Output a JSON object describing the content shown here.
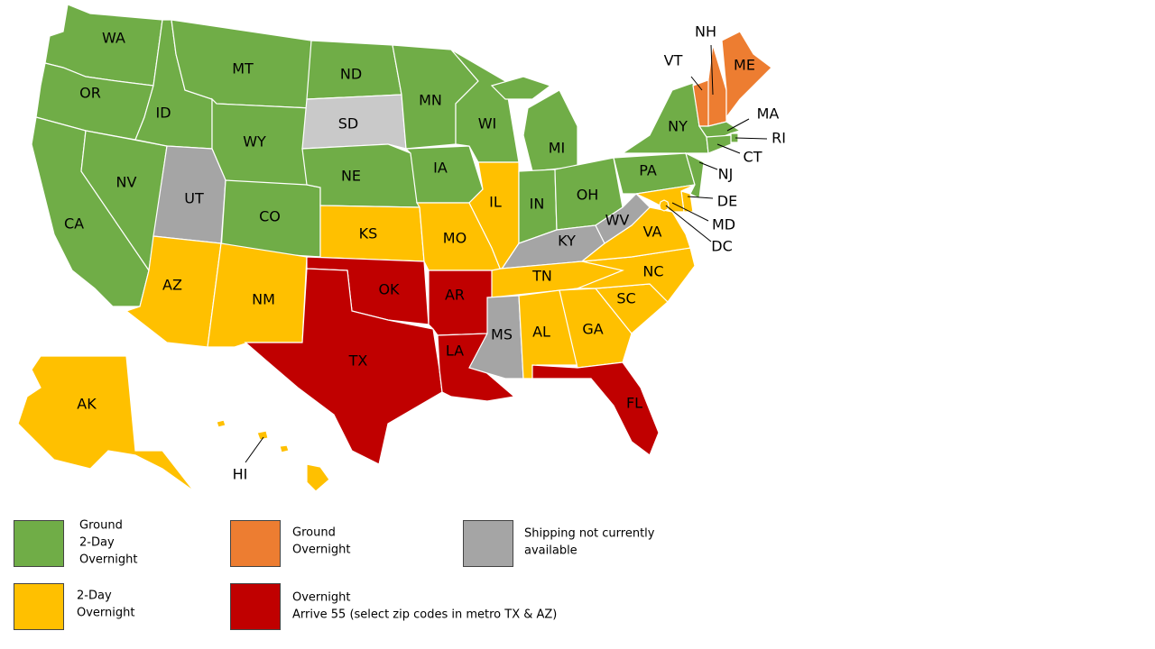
{
  "states": [
    {
      "label": "WA",
      "color": "#70ad47"
    },
    {
      "label": "OR",
      "color": "#70ad47"
    },
    {
      "label": "CA",
      "color": "#70ad47"
    },
    {
      "label": "NV",
      "color": "#70ad47"
    },
    {
      "label": "ID",
      "color": "#70ad47"
    },
    {
      "label": "MT",
      "color": "#70ad47"
    },
    {
      "label": "WY",
      "color": "#70ad47"
    },
    {
      "label": "UT",
      "color": "#a5a5a5"
    },
    {
      "label": "CO",
      "color": "#70ad47"
    },
    {
      "label": "AZ",
      "color": "#ffc000"
    },
    {
      "label": "NM",
      "color": "#ffc000"
    },
    {
      "label": "ND",
      "color": "#70ad47"
    },
    {
      "label": "SD",
      "color": "#c9c9c9"
    },
    {
      "label": "NE",
      "color": "#70ad47"
    },
    {
      "label": "KS",
      "color": "#ffc000"
    },
    {
      "label": "OK",
      "color": "#c00000"
    },
    {
      "label": "TX",
      "color": "#c00000"
    },
    {
      "label": "MN",
      "color": "#70ad47"
    },
    {
      "label": "IA",
      "color": "#70ad47"
    },
    {
      "label": "MO",
      "color": "#ffc000"
    },
    {
      "label": "AR",
      "color": "#c00000"
    },
    {
      "label": "LA",
      "color": "#c00000"
    },
    {
      "label": "WI",
      "color": "#70ad47"
    },
    {
      "label": "IL",
      "color": "#ffc000"
    },
    {
      "label": "MI",
      "color": "#70ad47"
    },
    {
      "label": "IN",
      "color": "#70ad47"
    },
    {
      "label": "OH",
      "color": "#70ad47"
    },
    {
      "label": "KY",
      "color": "#a5a5a5"
    },
    {
      "label": "TN",
      "color": "#ffc000"
    },
    {
      "label": "MS",
      "color": "#a5a5a5"
    },
    {
      "label": "AL",
      "color": "#ffc000"
    },
    {
      "label": "GA",
      "color": "#ffc000"
    },
    {
      "label": "FL",
      "color": "#c00000"
    },
    {
      "label": "SC",
      "color": "#ffc000"
    },
    {
      "label": "NC",
      "color": "#ffc000"
    },
    {
      "label": "VA",
      "color": "#ffc000"
    },
    {
      "label": "WV",
      "color": "#a5a5a5"
    },
    {
      "label": "PA",
      "color": "#70ad47"
    },
    {
      "label": "NY",
      "color": "#70ad47"
    },
    {
      "label": "VT",
      "color": "#ed7d31"
    },
    {
      "label": "NH",
      "color": "#ed7d31"
    },
    {
      "label": "ME",
      "color": "#ed7d31"
    },
    {
      "label": "MA",
      "color": "#70ad47"
    },
    {
      "label": "RI",
      "color": "#70ad47"
    },
    {
      "label": "CT",
      "color": "#70ad47"
    },
    {
      "label": "NJ",
      "color": "#70ad47"
    },
    {
      "label": "DE",
      "color": "#ffc000"
    },
    {
      "label": "MD",
      "color": "#ffc000"
    },
    {
      "label": "DC",
      "color": "#ffc000"
    },
    {
      "label": "AK",
      "color": "#ffc000"
    },
    {
      "label": "HI",
      "color": "#ffc000"
    }
  ],
  "legend": [
    {
      "color": "#70ad47",
      "lines": [
        "Ground",
        "2-Day",
        "Overnight"
      ]
    },
    {
      "color": "#ed7d31",
      "lines": [
        "Ground",
        "Overnight"
      ]
    },
    {
      "color": "#a5a5a5",
      "lines": [
        "Shipping not currently",
        "available"
      ]
    },
    {
      "color": "#ffc000",
      "lines": [
        "2-Day",
        "Overnight"
      ]
    },
    {
      "color": "#c00000",
      "lines": [
        "Overnight",
        "Arrive 55 (select zip codes in metro TX & AZ)"
      ]
    }
  ]
}
